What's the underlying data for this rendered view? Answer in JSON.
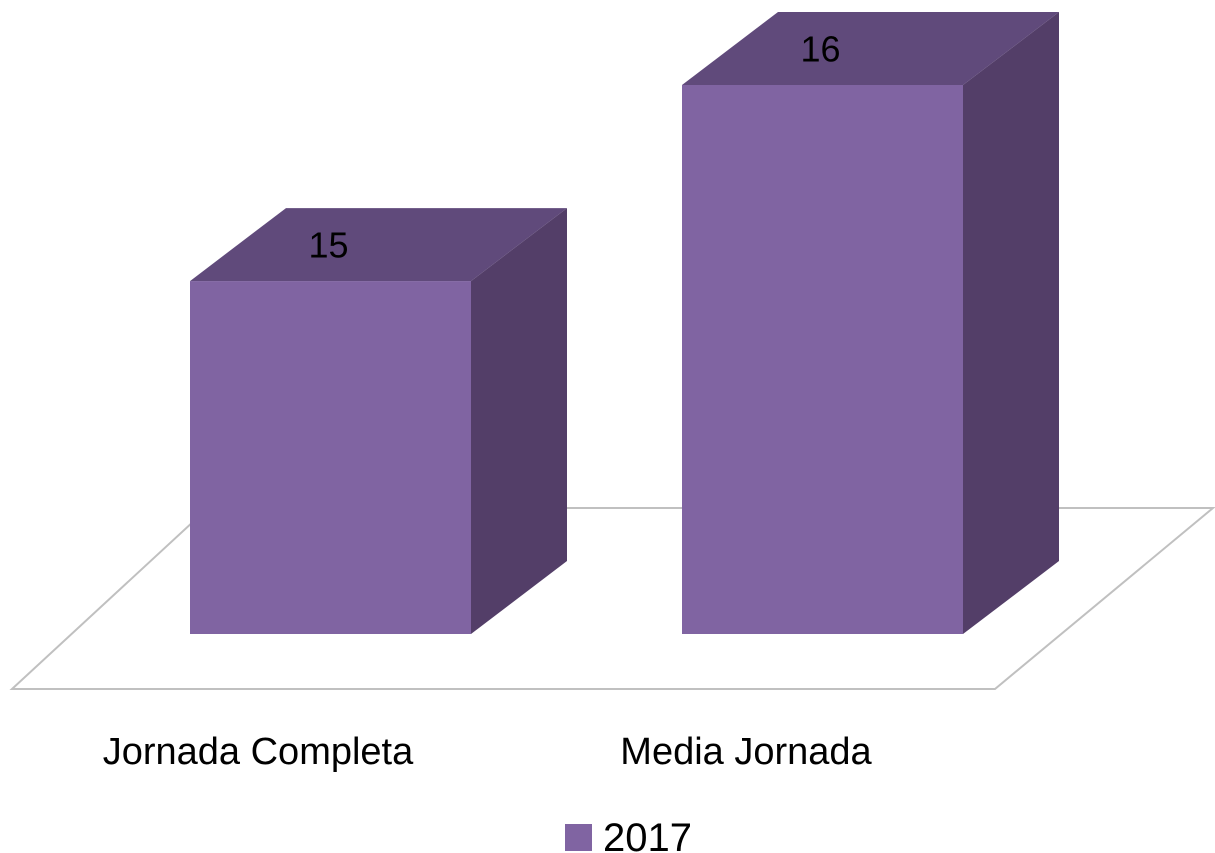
{
  "chart_data": {
    "type": "bar",
    "style": "3d-column",
    "categories": [
      "Jornada Completa",
      "Media Jornada"
    ],
    "series": [
      {
        "name": "2017",
        "values": [
          15,
          16
        ]
      }
    ],
    "data_labels": [
      "15",
      "16"
    ],
    "title": "",
    "xlabel": "",
    "ylabel": "",
    "grid": false,
    "legend": {
      "position": "bottom",
      "entries": [
        "2017"
      ]
    },
    "colors": {
      "front": "#8064a2",
      "top": "#604a7b",
      "side": "#533e68",
      "floor": "#c0c0c0"
    }
  }
}
